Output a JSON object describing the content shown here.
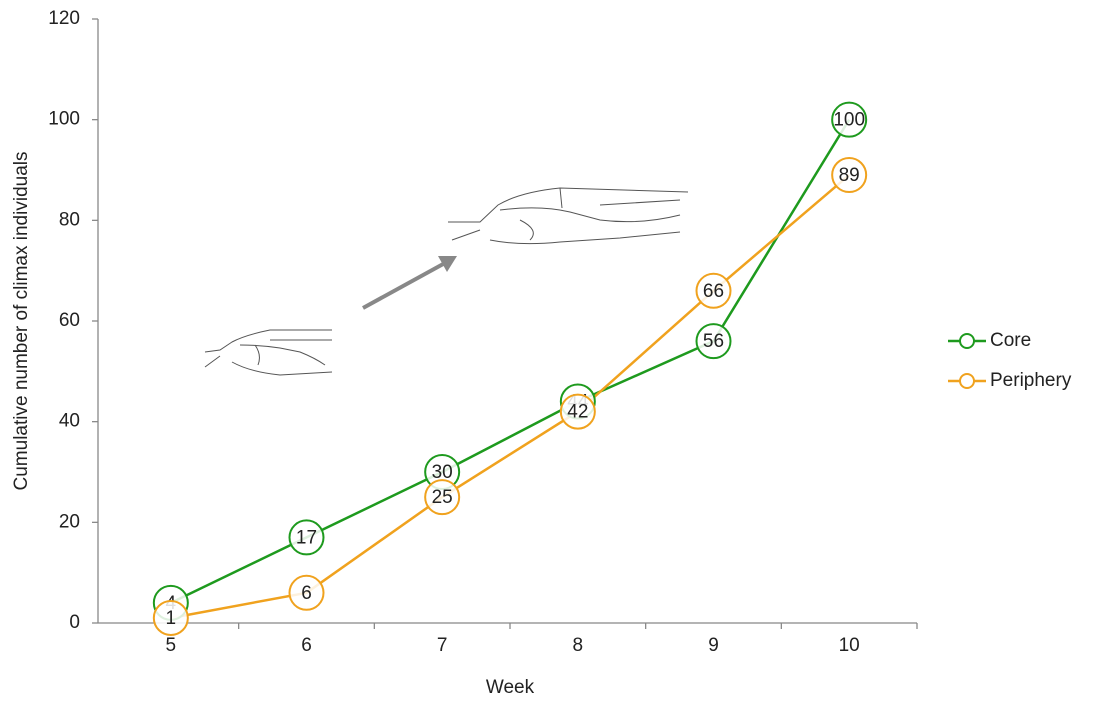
{
  "chart_data": {
    "type": "line",
    "x_label": "Week",
    "y_label": "Cumulative number of climax individuals",
    "categories": [
      "5",
      "6",
      "7",
      "8",
      "9",
      "10"
    ],
    "series": [
      {
        "name": "Core",
        "color": "#1e9a1e",
        "values": [
          4,
          17,
          30,
          44,
          56,
          100
        ]
      },
      {
        "name": "Periphery",
        "color": "#f0a21e",
        "values": [
          1,
          6,
          25,
          42,
          66,
          89
        ]
      }
    ],
    "ylim": [
      0,
      120
    ],
    "yticks": [
      0,
      20,
      40,
      60,
      80,
      100,
      120
    ],
    "grid": false,
    "legend": "right"
  }
}
